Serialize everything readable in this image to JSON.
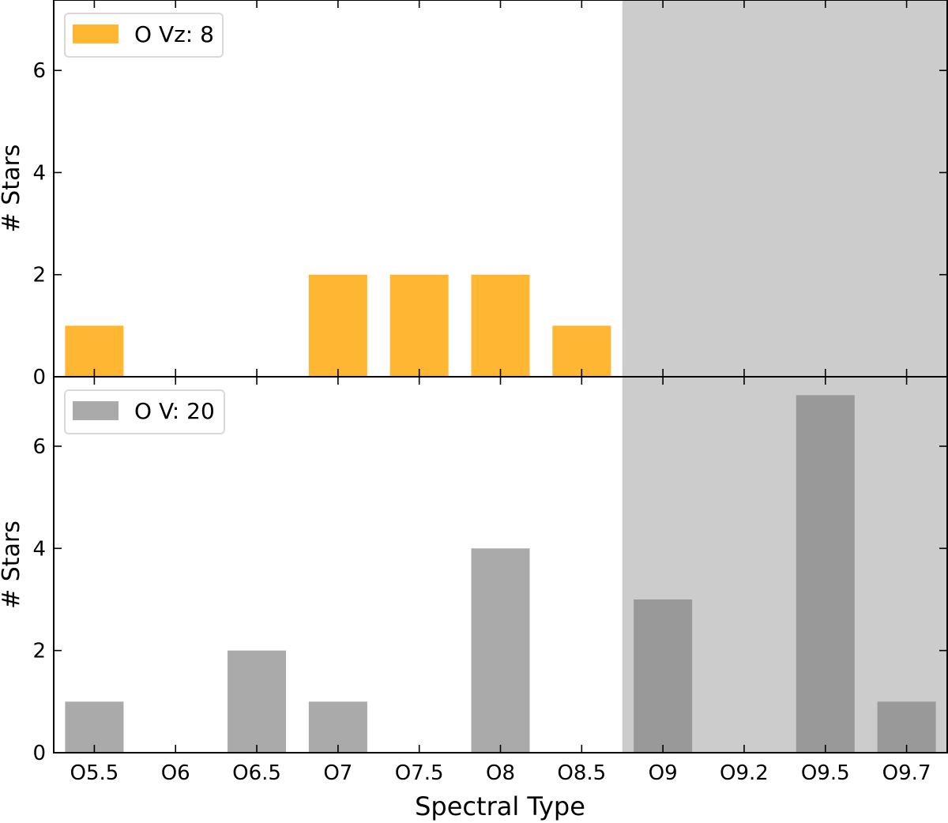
{
  "chart_data": [
    {
      "type": "bar",
      "categories": [
        "O5.5",
        "O6",
        "O6.5",
        "O7",
        "O7.5",
        "O8",
        "O8.5",
        "O9",
        "O9.2",
        "O9.5",
        "O9.7"
      ],
      "values": [
        1,
        0,
        0,
        2,
        2,
        2,
        1,
        0,
        0,
        0,
        0
      ],
      "color": "#ffb733",
      "legend": "O Vz: 8",
      "legend_placement": "top-left",
      "ylabel": "# Stars",
      "yticks": [
        0,
        2,
        4,
        6
      ],
      "ylim": [
        0,
        7.38
      ],
      "xlim": [
        -0.5,
        10.5
      ],
      "shaded_x_range": [
        6.5,
        10.5
      ]
    },
    {
      "type": "bar",
      "categories": [
        "O5.5",
        "O6",
        "O6.5",
        "O7",
        "O7.5",
        "O8",
        "O8.5",
        "O9",
        "O9.2",
        "O9.5",
        "O9.7"
      ],
      "values": [
        1,
        0,
        2,
        1,
        0,
        4,
        0,
        3,
        0,
        7,
        1
      ],
      "color": "#aaaaaa",
      "legend": "O V: 20",
      "legend_placement": "top-left",
      "ylabel": "# Stars",
      "xlabel": "Spectral Type",
      "yticks": [
        0,
        2,
        4,
        6
      ],
      "ylim": [
        0,
        7.36
      ],
      "xlim": [
        -0.5,
        10.5
      ],
      "shaded_x_range": [
        6.5,
        10.5
      ]
    }
  ]
}
